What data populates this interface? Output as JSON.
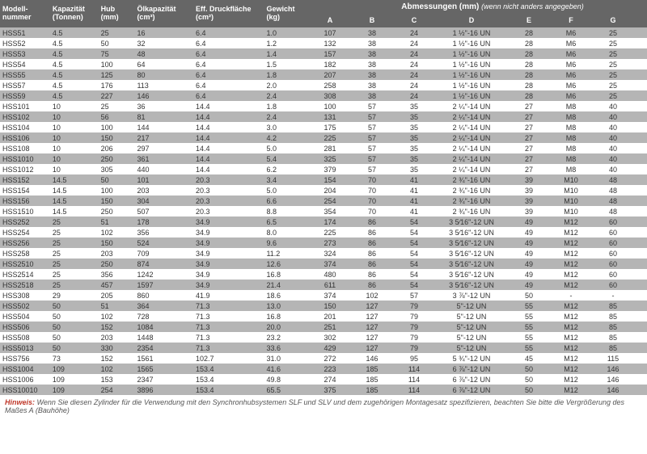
{
  "colors": {
    "header_bg": "#666666",
    "header_fg": "#ffffff",
    "row_even": "#b5b5b5",
    "row_odd": "#ffffff",
    "text": "#333333",
    "note_label": "#c0392b"
  },
  "left": {
    "headers": [
      "Modell-\nnummer",
      "Kapazität\n(Tonnen)",
      "Hub\n(mm)",
      "Ölkapazität\n(cm³)",
      "Eff. Druckfläche\n(cm²)",
      "Gewicht\n(kg)"
    ],
    "rows": [
      [
        "HSS51",
        "4.5",
        "25",
        "16",
        "6.4",
        "1.0"
      ],
      [
        "HSS52",
        "4.5",
        "50",
        "32",
        "6.4",
        "1.2"
      ],
      [
        "HSS53",
        "4.5",
        "75",
        "48",
        "6.4",
        "1.4"
      ],
      [
        "HSS54",
        "4.5",
        "100",
        "64",
        "6.4",
        "1.5"
      ],
      [
        "HSS55",
        "4.5",
        "125",
        "80",
        "6.4",
        "1.8"
      ],
      [
        "HSS57",
        "4.5",
        "176",
        "113",
        "6.4",
        "2.0"
      ],
      [
        "HSS59",
        "4.5",
        "227",
        "146",
        "6.4",
        "2.4"
      ],
      [
        "HSS101",
        "10",
        "25",
        "36",
        "14.4",
        "1.8"
      ],
      [
        "HSS102",
        "10",
        "56",
        "81",
        "14.4",
        "2.4"
      ],
      [
        "HSS104",
        "10",
        "100",
        "144",
        "14.4",
        "3.0"
      ],
      [
        "HSS106",
        "10",
        "150",
        "217",
        "14.4",
        "4.2"
      ],
      [
        "HSS108",
        "10",
        "206",
        "297",
        "14.4",
        "5.0"
      ],
      [
        "HSS1010",
        "10",
        "250",
        "361",
        "14.4",
        "5.4"
      ],
      [
        "HSS1012",
        "10",
        "305",
        "440",
        "14.4",
        "6.2"
      ],
      [
        "HSS152",
        "14.5",
        "50",
        "101",
        "20.3",
        "3.4"
      ],
      [
        "HSS154",
        "14.5",
        "100",
        "203",
        "20.3",
        "5.0"
      ],
      [
        "HSS156",
        "14.5",
        "150",
        "304",
        "20.3",
        "6.6"
      ],
      [
        "HSS1510",
        "14.5",
        "250",
        "507",
        "20.3",
        "8.8"
      ],
      [
        "HSS252",
        "25",
        "51",
        "178",
        "34.9",
        "6.5"
      ],
      [
        "HSS254",
        "25",
        "102",
        "356",
        "34.9",
        "8.0"
      ],
      [
        "HSS256",
        "25",
        "150",
        "524",
        "34.9",
        "9.6"
      ],
      [
        "HSS258",
        "25",
        "203",
        "709",
        "34.9",
        "11.2"
      ],
      [
        "HSS2510",
        "25",
        "250",
        "874",
        "34.9",
        "12.6"
      ],
      [
        "HSS2514",
        "25",
        "356",
        "1242",
        "34.9",
        "16.8"
      ],
      [
        "HSS2518",
        "25",
        "457",
        "1597",
        "34.9",
        "21.4"
      ],
      [
        "HSS308",
        "29",
        "205",
        "860",
        "41.9",
        "18.6"
      ],
      [
        "HSS502",
        "50",
        "51",
        "364",
        "71.3",
        "13.0"
      ],
      [
        "HSS504",
        "50",
        "102",
        "728",
        "71.3",
        "16.8"
      ],
      [
        "HSS506",
        "50",
        "152",
        "1084",
        "71.3",
        "20.0"
      ],
      [
        "HSS508",
        "50",
        "203",
        "1448",
        "71.3",
        "23.2"
      ],
      [
        "HSS5013",
        "50",
        "330",
        "2354",
        "71.3",
        "33.6"
      ],
      [
        "HSS756",
        "73",
        "152",
        "1561",
        "102.7",
        "31.0"
      ],
      [
        "HSS1004",
        "109",
        "102",
        "1565",
        "153.4",
        "41.6"
      ],
      [
        "HSS1006",
        "109",
        "153",
        "2347",
        "153.4",
        "49.8"
      ],
      [
        "HSS10010",
        "109",
        "254",
        "3896",
        "153.4",
        "65.5"
      ]
    ]
  },
  "right": {
    "super_header": "Abmessungen (mm)",
    "super_note": "(wenn nicht anders angegeben)",
    "headers": [
      "A",
      "B",
      "C",
      "D",
      "E",
      "F",
      "G",
      "H"
    ],
    "rows": [
      [
        "107",
        "38",
        "24",
        "1 ½\"-16 UN",
        "28",
        "M6",
        "25",
        "19"
      ],
      [
        "132",
        "38",
        "24",
        "1 ½\"-16 UN",
        "28",
        "M6",
        "25",
        "19"
      ],
      [
        "157",
        "38",
        "24",
        "1 ½\"-16 UN",
        "28",
        "M6",
        "25",
        "19"
      ],
      [
        "182",
        "38",
        "24",
        "1 ½\"-16 UN",
        "28",
        "M6",
        "25",
        "19"
      ],
      [
        "207",
        "38",
        "24",
        "1 ½\"-16 UN",
        "28",
        "M6",
        "25",
        "19"
      ],
      [
        "258",
        "38",
        "24",
        "1 ½\"-16 UN",
        "28",
        "M6",
        "25",
        "19"
      ],
      [
        "308",
        "38",
        "24",
        "1 ½\"-16 UN",
        "28",
        "M6",
        "25",
        "19"
      ],
      [
        "100",
        "57",
        "35",
        "2 ¼\"-14 UN",
        "27",
        "M8",
        "40",
        "19"
      ],
      [
        "131",
        "57",
        "35",
        "2 ¼\"-14 UN",
        "27",
        "M8",
        "40",
        "19"
      ],
      [
        "175",
        "57",
        "35",
        "2 ¼\"-14 UN",
        "27",
        "M8",
        "40",
        "19"
      ],
      [
        "225",
        "57",
        "35",
        "2 ¼\"-14 UN",
        "27",
        "M8",
        "40",
        "19"
      ],
      [
        "281",
        "57",
        "35",
        "2 ¼\"-14 UN",
        "27",
        "M8",
        "40",
        "19"
      ],
      [
        "325",
        "57",
        "35",
        "2 ¼\"-14 UN",
        "27",
        "M8",
        "40",
        "19"
      ],
      [
        "379",
        "57",
        "35",
        "2 ¼\"-14 UN",
        "27",
        "M8",
        "40",
        "19"
      ],
      [
        "154",
        "70",
        "41",
        "2 ¾\"-16 UN",
        "39",
        "M10",
        "48",
        "19"
      ],
      [
        "204",
        "70",
        "41",
        "2 ¾\"-16 UN",
        "39",
        "M10",
        "48",
        "19"
      ],
      [
        "254",
        "70",
        "41",
        "2 ¾\"-16 UN",
        "39",
        "M10",
        "48",
        "19"
      ],
      [
        "354",
        "70",
        "41",
        "2 ¾\"-16 UN",
        "39",
        "M10",
        "48",
        "19"
      ],
      [
        "174",
        "86",
        "54",
        "3 5⁄16\"-12 UN",
        "49",
        "M12",
        "60",
        "25"
      ],
      [
        "225",
        "86",
        "54",
        "3 5⁄16\"-12 UN",
        "49",
        "M12",
        "60",
        "25"
      ],
      [
        "273",
        "86",
        "54",
        "3 5⁄16\"-12 UN",
        "49",
        "M12",
        "60",
        "25"
      ],
      [
        "324",
        "86",
        "54",
        "3 5⁄16\"-12 UN",
        "49",
        "M12",
        "60",
        "25"
      ],
      [
        "374",
        "86",
        "54",
        "3 5⁄16\"-12 UN",
        "49",
        "M12",
        "60",
        "25"
      ],
      [
        "480",
        "86",
        "54",
        "3 5⁄16\"-12 UN",
        "49",
        "M12",
        "60",
        "25"
      ],
      [
        "611",
        "86",
        "54",
        "3 5⁄16\"-12 UN",
        "49",
        "M12",
        "60",
        "25"
      ],
      [
        "374",
        "102",
        "57",
        "3 ⅞\"-12 UN",
        "50",
        "-",
        "-",
        "50"
      ],
      [
        "150",
        "127",
        "79",
        "5\"-12 UN",
        "55",
        "M12",
        "85",
        "20"
      ],
      [
        "201",
        "127",
        "79",
        "5\"-12 UN",
        "55",
        "M12",
        "85",
        "20"
      ],
      [
        "251",
        "127",
        "79",
        "5\"-12 UN",
        "55",
        "M12",
        "85",
        "20"
      ],
      [
        "302",
        "127",
        "79",
        "5\"-12 UN",
        "55",
        "M12",
        "85",
        "20"
      ],
      [
        "429",
        "127",
        "79",
        "5\"-12 UN",
        "55",
        "M12",
        "85",
        "20"
      ],
      [
        "272",
        "146",
        "95",
        "5 ¾\"-12 UN",
        "45",
        "M12",
        "115",
        "32"
      ],
      [
        "223",
        "185",
        "114",
        "6 ⅞\"-12 UN",
        "50",
        "M12",
        "146",
        "32"
      ],
      [
        "274",
        "185",
        "114",
        "6 ⅞\"-12 UN",
        "50",
        "M12",
        "146",
        "32"
      ],
      [
        "375",
        "185",
        "114",
        "6 ⅞\"-12 UN",
        "50",
        "M12",
        "146",
        "32"
      ]
    ]
  },
  "note": {
    "label": "Hinweis:",
    "text": "Wenn Sie diesen Zylinder für die Verwendung mit den Synchronhubsystemen SLF und SLV und dem zugehörigen Montagesatz spezifizieren, beachten Sie bitte die Vergrößerung des Maßes A (Bauhöhe)"
  }
}
